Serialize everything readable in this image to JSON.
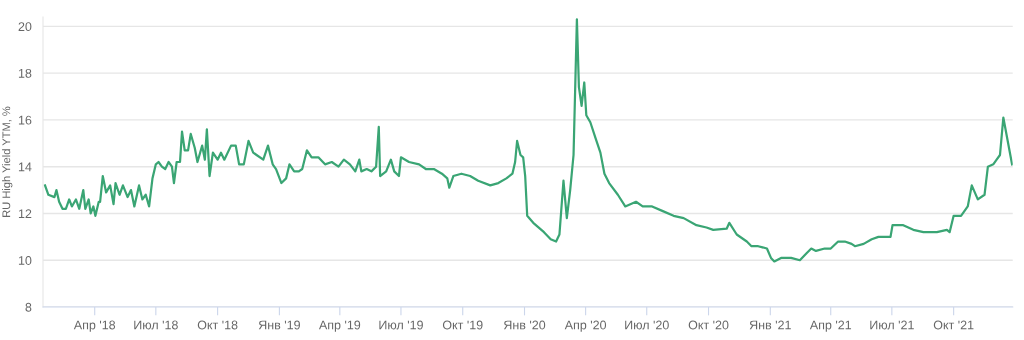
{
  "chart_data": {
    "type": "line",
    "ylabel": "RU High Yield YTM, %",
    "xlim": [
      "2018-01-14",
      "2021-12-28"
    ],
    "ylim": [
      8,
      20.4
    ],
    "yticks": [
      8,
      10,
      12,
      14,
      16,
      18,
      20
    ],
    "xticks": [
      {
        "value": "2018-04-01",
        "label": "Апр '18"
      },
      {
        "value": "2018-07-01",
        "label": "Июл '18"
      },
      {
        "value": "2018-10-01",
        "label": "Окт '18"
      },
      {
        "value": "2019-01-01",
        "label": "Янв '19"
      },
      {
        "value": "2019-04-01",
        "label": "Апр '19"
      },
      {
        "value": "2019-07-01",
        "label": "Июл '19"
      },
      {
        "value": "2019-10-01",
        "label": "Окт '19"
      },
      {
        "value": "2020-01-01",
        "label": "Янв '20"
      },
      {
        "value": "2020-04-01",
        "label": "Апр '20"
      },
      {
        "value": "2020-07-01",
        "label": "Июл '20"
      },
      {
        "value": "2020-10-01",
        "label": "Окт '20"
      },
      {
        "value": "2021-01-01",
        "label": "Янв '21"
      },
      {
        "value": "2021-04-01",
        "label": "Апр '21"
      },
      {
        "value": "2021-07-01",
        "label": "Июл '21"
      },
      {
        "value": "2021-10-01",
        "label": "Окт '21"
      }
    ],
    "grid": "y",
    "marker": "none",
    "line_style": "solid",
    "series": [
      {
        "color": "#3aa574",
        "x": [
          "2018-01-17",
          "2018-01-22",
          "2018-01-31",
          "2018-02-03",
          "2018-02-07",
          "2018-02-12",
          "2018-02-17",
          "2018-02-22",
          "2018-02-26",
          "2018-03-04",
          "2018-03-09",
          "2018-03-15",
          "2018-03-18",
          "2018-03-23",
          "2018-03-26",
          "2018-03-30",
          "2018-04-02",
          "2018-04-07",
          "2018-04-09",
          "2018-04-13",
          "2018-04-18",
          "2018-04-24",
          "2018-04-29",
          "2018-05-02",
          "2018-05-08",
          "2018-05-13",
          "2018-05-20",
          "2018-05-25",
          "2018-05-30",
          "2018-06-06",
          "2018-06-11",
          "2018-06-16",
          "2018-06-21",
          "2018-06-26",
          "2018-07-01",
          "2018-07-05",
          "2018-07-10",
          "2018-07-15",
          "2018-07-20",
          "2018-07-25",
          "2018-07-28",
          "2018-08-01",
          "2018-08-06",
          "2018-08-09",
          "2018-08-13",
          "2018-08-18",
          "2018-08-22",
          "2018-08-28",
          "2018-09-01",
          "2018-09-08",
          "2018-09-12",
          "2018-09-15",
          "2018-09-19",
          "2018-09-24",
          "2018-10-01",
          "2018-10-06",
          "2018-10-11",
          "2018-10-21",
          "2018-10-28",
          "2018-11-02",
          "2018-11-09",
          "2018-11-16",
          "2018-11-23",
          "2018-11-28",
          "2018-12-08",
          "2018-12-15",
          "2018-12-22",
          "2018-12-27",
          "2019-01-04",
          "2019-01-11",
          "2019-01-16",
          "2019-01-23",
          "2019-01-30",
          "2019-02-04",
          "2019-02-11",
          "2019-02-18",
          "2019-02-28",
          "2019-03-10",
          "2019-03-20",
          "2019-03-30",
          "2019-04-07",
          "2019-04-16",
          "2019-04-24",
          "2019-04-30",
          "2019-05-03",
          "2019-05-11",
          "2019-05-18",
          "2019-05-25",
          "2019-05-29",
          "2019-05-31",
          "2019-06-09",
          "2019-06-16",
          "2019-06-21",
          "2019-06-28",
          "2019-07-01",
          "2019-07-13",
          "2019-07-28",
          "2019-08-07",
          "2019-08-19",
          "2019-08-31",
          "2019-09-08",
          "2019-09-11",
          "2019-09-17",
          "2019-09-29",
          "2019-10-12",
          "2019-10-24",
          "2019-11-11",
          "2019-11-23",
          "2019-12-05",
          "2019-12-14",
          "2019-12-18",
          "2019-12-21",
          "2019-12-26",
          "2019-12-30",
          "2020-01-02",
          "2020-01-05",
          "2020-01-14",
          "2020-01-30",
          "2020-02-09",
          "2020-02-17",
          "2020-02-22",
          "2020-02-28",
          "2020-03-04",
          "2020-03-09",
          "2020-03-14",
          "2020-03-19",
          "2020-03-22",
          "2020-03-26",
          "2020-03-30",
          "2020-04-02",
          "2020-04-08",
          "2020-04-16",
          "2020-04-23",
          "2020-04-29",
          "2020-05-06",
          "2020-05-19",
          "2020-05-30",
          "2020-06-15",
          "2020-06-25",
          "2020-07-09",
          "2020-07-25",
          "2020-08-10",
          "2020-08-25",
          "2020-09-13",
          "2020-09-28",
          "2020-10-08",
          "2020-10-28",
          "2020-11-01",
          "2020-11-12",
          "2020-11-27",
          "2020-12-04",
          "2020-12-14",
          "2020-12-27",
          "2021-01-02",
          "2021-01-07",
          "2021-01-17",
          "2021-02-01",
          "2021-02-14",
          "2021-02-24",
          "2021-03-03",
          "2021-03-10",
          "2021-03-23",
          "2021-04-01",
          "2021-04-12",
          "2021-04-22",
          "2021-05-02",
          "2021-05-07",
          "2021-05-20",
          "2021-06-01",
          "2021-06-11",
          "2021-06-29",
          "2021-07-02",
          "2021-07-18",
          "2021-08-02",
          "2021-08-17",
          "2021-09-06",
          "2021-09-21",
          "2021-09-25",
          "2021-10-01",
          "2021-10-12",
          "2021-10-22",
          "2021-10-28",
          "2021-11-06",
          "2021-11-16",
          "2021-11-21",
          "2021-11-29",
          "2021-12-04",
          "2021-12-09",
          "2021-12-14",
          "2021-12-27"
        ],
        "values": [
          13.2,
          12.8,
          12.7,
          13.0,
          12.5,
          12.2,
          12.2,
          12.6,
          12.3,
          12.6,
          12.2,
          13.0,
          12.2,
          12.6,
          12.0,
          12.3,
          11.9,
          12.5,
          12.5,
          13.6,
          12.9,
          13.2,
          12.4,
          13.3,
          12.8,
          13.2,
          12.7,
          13.0,
          12.3,
          13.2,
          12.6,
          12.8,
          12.3,
          13.5,
          14.1,
          14.2,
          14.0,
          13.9,
          14.2,
          14.0,
          13.3,
          14.2,
          14.2,
          15.5,
          14.7,
          14.7,
          15.4,
          14.8,
          14.2,
          14.9,
          14.3,
          15.6,
          13.6,
          14.6,
          14.3,
          14.6,
          14.3,
          14.9,
          14.9,
          14.1,
          14.1,
          15.1,
          14.6,
          14.5,
          14.3,
          14.9,
          14.1,
          13.9,
          13.3,
          13.5,
          14.1,
          13.8,
          13.8,
          13.9,
          14.7,
          14.4,
          14.4,
          14.1,
          14.2,
          14.0,
          14.3,
          14.1,
          13.8,
          14.3,
          13.8,
          13.9,
          13.8,
          14.0,
          15.7,
          13.6,
          13.8,
          14.3,
          13.8,
          13.6,
          14.4,
          14.2,
          14.1,
          13.9,
          13.9,
          13.7,
          13.5,
          13.1,
          13.6,
          13.7,
          13.6,
          13.4,
          13.2,
          13.3,
          13.5,
          13.7,
          14.2,
          15.1,
          14.5,
          14.4,
          13.6,
          11.9,
          11.6,
          11.2,
          10.9,
          10.8,
          11.1,
          13.4,
          11.8,
          13.0,
          14.5,
          20.3,
          17.4,
          16.6,
          17.6,
          16.2,
          15.9,
          15.2,
          14.6,
          13.7,
          13.3,
          12.8,
          12.3,
          12.5,
          12.3,
          12.3,
          12.1,
          11.9,
          11.8,
          11.5,
          11.4,
          11.3,
          11.35,
          11.6,
          11.1,
          10.8,
          10.6,
          10.6,
          10.5,
          10.1,
          9.95,
          10.1,
          10.1,
          10.0,
          10.3,
          10.5,
          10.4,
          10.5,
          10.5,
          10.8,
          10.8,
          10.7,
          10.6,
          10.7,
          10.9,
          11.0,
          11.0,
          11.5,
          11.5,
          11.3,
          11.2,
          11.2,
          11.3,
          11.2,
          11.9,
          11.9,
          12.3,
          13.2,
          12.6,
          12.8,
          14.0,
          14.1,
          14.3,
          14.5,
          16.1,
          14.1
        ]
      }
    ]
  }
}
